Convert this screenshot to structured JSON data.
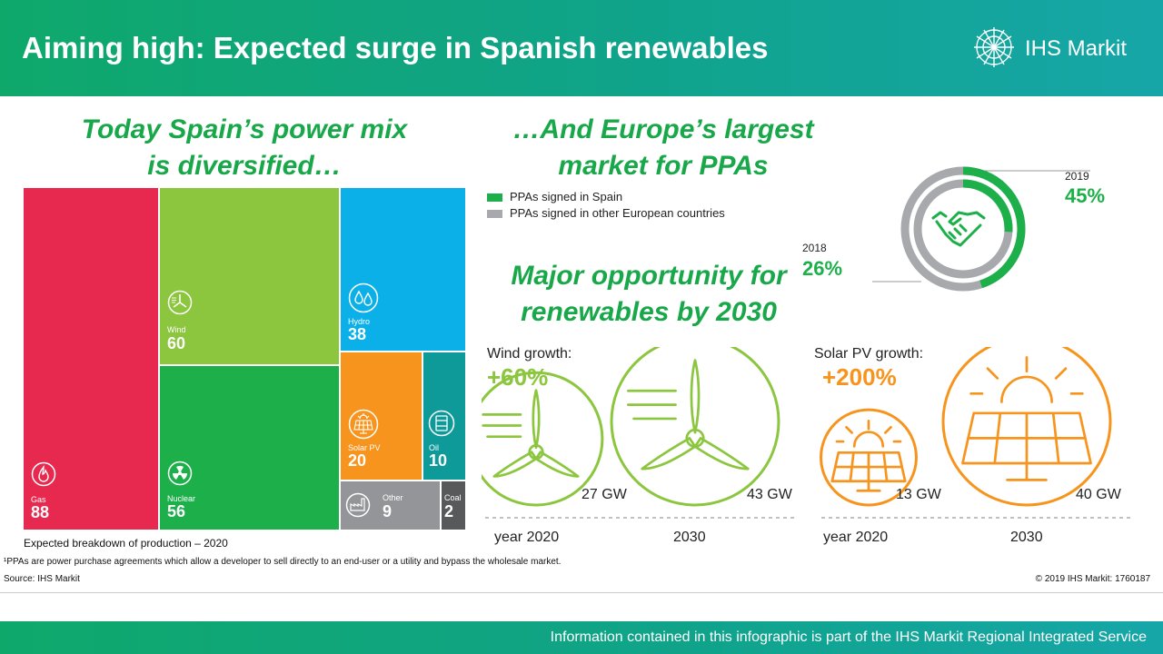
{
  "header": {
    "title": "Aiming high: Expected surge in Spanish renewables",
    "logo_text": "IHS Markit"
  },
  "left_headline": {
    "line1": "Today Spain’s power mix",
    "line2": "is diversified…"
  },
  "right_headline": {
    "line1": "…And Europe’s largest",
    "line2": "market for PPAs"
  },
  "opportunity_headline": {
    "line1": "Major opportunity for",
    "line2": "renewables by 2030"
  },
  "chart_data": [
    {
      "type": "treemap",
      "title": "Expected breakdown of production – 2020",
      "items": [
        {
          "name": "Gas",
          "value": 88,
          "color": "#e8294f",
          "icon": "flame-icon"
        },
        {
          "name": "Wind",
          "value": 60,
          "color": "#8cc63f",
          "icon": "wind-turbine-icon"
        },
        {
          "name": "Nuclear",
          "value": 56,
          "color": "#1db04a",
          "icon": "nuclear-icon"
        },
        {
          "name": "Hydro",
          "value": 38,
          "color": "#0bb0e8",
          "icon": "water-drops-icon"
        },
        {
          "name": "Solar PV",
          "value": 20,
          "color": "#f7941d",
          "icon": "solar-panel-icon"
        },
        {
          "name": "Oil",
          "value": 10,
          "color": "#0f9a9a",
          "icon": "oil-barrel-icon"
        },
        {
          "name": "Other",
          "value": 9,
          "color": "#939598",
          "icon": "factory-icon"
        },
        {
          "name": "Coal",
          "value": 2,
          "color": "#58595b",
          "icon": ""
        }
      ]
    },
    {
      "type": "donut",
      "title": "PPAs signed in Spain",
      "legend": [
        {
          "label": "PPAs signed in Spain",
          "color": "#1db04a"
        },
        {
          "label": "PPAs signed in other European countries",
          "color": "#a7a9ac"
        }
      ],
      "rings": [
        {
          "year": "2019",
          "value": 45,
          "label": "45%"
        },
        {
          "year": "2018",
          "value": 26,
          "label": "26%"
        }
      ]
    },
    {
      "type": "bubble",
      "title": "Wind growth:",
      "growth_label": "+60%",
      "unit": "GW",
      "points": [
        {
          "year": "year 2020",
          "value": 27,
          "label": "27 GW"
        },
        {
          "year": "2030",
          "value": 43,
          "label": "43 GW"
        }
      ],
      "color": "#8cc63f"
    },
    {
      "type": "bubble",
      "title": "Solar PV growth:",
      "growth_label": "+200%",
      "unit": "GW",
      "points": [
        {
          "year": "year 2020",
          "value": 13,
          "label": "13 GW"
        },
        {
          "year": "2030",
          "value": 40,
          "label": "40 GW"
        }
      ],
      "color": "#f7941d"
    }
  ],
  "treemap_caption": "Expected breakdown of production – 2020",
  "footnotes": {
    "ppa": "¹PPAs are power purchase agreements which allow a developer to sell directly to an end-user or a utility and bypass the wholesale market.",
    "source": "Source: IHS Markit",
    "copyright": "© 2019 IHS Markit: 1760187"
  },
  "footer": {
    "text": "Information contained in this infographic is part of the IHS Markit Regional Integrated Service"
  }
}
